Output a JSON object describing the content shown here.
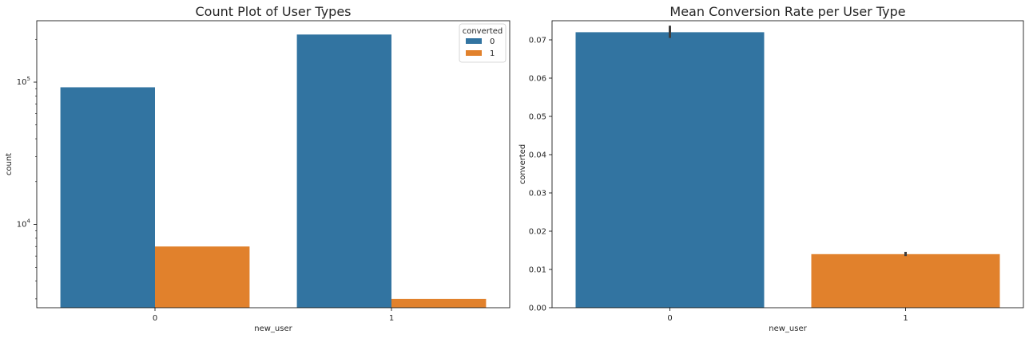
{
  "chart_data": [
    {
      "type": "bar",
      "title": "Count Plot of User Types",
      "xlabel": "new_user",
      "ylabel": "count",
      "yscale": "log",
      "ylim": [
        2600,
        270000
      ],
      "y_ticks": [
        {
          "value": 10000,
          "base": "10",
          "exp": "4"
        },
        {
          "value": 100000,
          "base": "10",
          "exp": "5"
        }
      ],
      "categories": [
        "0",
        "1"
      ],
      "series": [
        {
          "name": "0",
          "color": "#3274a1",
          "values": [
            92000,
            216000
          ]
        },
        {
          "name": "1",
          "color": "#e1812c",
          "values": [
            7000,
            3000
          ]
        }
      ],
      "legend": {
        "title": "converted",
        "position": "top-right"
      },
      "grid": false
    },
    {
      "type": "bar",
      "title": "Mean Conversion Rate per User Type",
      "xlabel": "new_user",
      "ylabel": "converted",
      "ylim": [
        0,
        0.075
      ],
      "y_ticks": [
        "0.00",
        "0.01",
        "0.02",
        "0.03",
        "0.04",
        "0.05",
        "0.06",
        "0.07"
      ],
      "categories": [
        "0",
        "1"
      ],
      "colors": [
        "#3274a1",
        "#e1812c"
      ],
      "values": [
        0.072,
        0.014
      ],
      "error_bars": [
        [
          0.0705,
          0.0737
        ],
        [
          0.0135,
          0.0146
        ]
      ],
      "grid": false
    }
  ]
}
